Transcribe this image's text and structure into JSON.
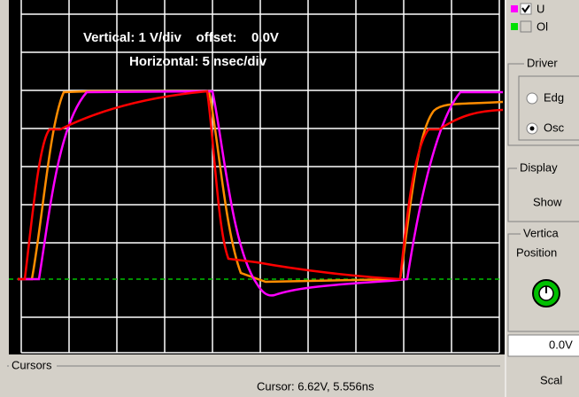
{
  "scope": {
    "vertical_label": "Vertical: 1 V/div    offset:    0.0V",
    "horizontal_label": "Horizontal: 5 nsec/div"
  },
  "cursors": {
    "title": "Cursors",
    "readout": "Cursor: 6.62V, 5.556ns"
  },
  "side_panel": {
    "legend": [
      "U",
      "Ol"
    ],
    "driver": {
      "title": "Driver",
      "options": [
        "Edg",
        "Osc"
      ]
    },
    "display": {
      "title": "Display",
      "button": "Show"
    },
    "vertical": {
      "title": "Vertica",
      "position": "Position",
      "value": "0.0V",
      "scale": "Scal"
    }
  }
}
